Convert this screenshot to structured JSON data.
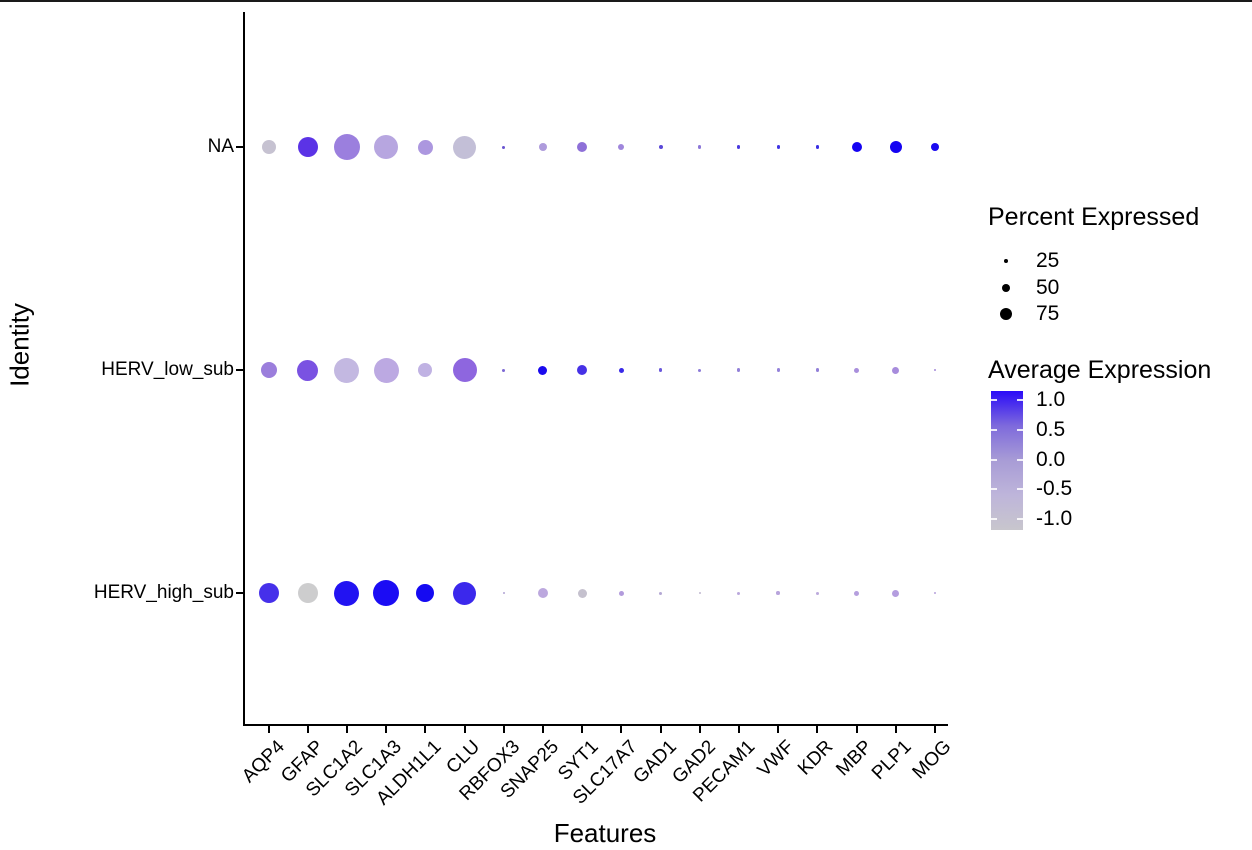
{
  "chart_data": {
    "type": "scatter",
    "subtype": "dotplot",
    "xlabel": "Features",
    "ylabel": "Identity",
    "x_categories": [
      "AQP4",
      "GFAP",
      "SLC1A2",
      "SLC1A3",
      "ALDH1L1",
      "CLU",
      "RBFOX3",
      "SNAP25",
      "SYT1",
      "SLC17A7",
      "GAD1",
      "GAD2",
      "PECAM1",
      "VWF",
      "KDR",
      "MBP",
      "PLP1",
      "MOG"
    ],
    "y_categories": [
      "NA",
      "HERV_low_sub",
      "HERV_high_sub"
    ],
    "series": [
      {
        "identity": "NA",
        "percent_expressed": [
          52,
          75,
          97,
          90,
          56,
          86,
          11,
          30,
          37,
          22,
          15,
          13,
          12,
          12,
          12,
          37,
          45,
          30
        ],
        "avg_expression": [
          -0.8,
          0.7,
          0.3,
          -0.1,
          0.1,
          -0.7,
          0.5,
          0.0,
          0.4,
          0.2,
          0.6,
          0.3,
          0.7,
          0.8,
          0.8,
          1.0,
          1.0,
          1.0
        ],
        "radius_px": [
          7,
          10,
          13,
          12,
          7.5,
          11.5,
          1.5,
          4,
          5,
          3,
          2,
          1.8,
          1.6,
          1.6,
          1.6,
          5,
          6,
          4
        ],
        "colors": [
          "#C6C2D1",
          "#5B33E6",
          "#9B7FDE",
          "#B7A6E0",
          "#AC97DF",
          "#C3BFD7",
          "#6A55D0",
          "#AE9BDC",
          "#8E70D8",
          "#9F86DC",
          "#5A48D8",
          "#8C77D8",
          "#4A3AE0",
          "#4035E4",
          "#3A2FE4",
          "#1503F2",
          "#1503F2",
          "#1B0AF0"
        ]
      },
      {
        "identity": "HERV_low_sub",
        "percent_expressed": [
          60,
          78,
          93,
          93,
          52,
          90,
          11,
          34,
          37,
          19,
          12,
          11,
          12,
          12,
          12,
          19,
          26,
          10
        ],
        "avg_expression": [
          0.3,
          0.55,
          -0.35,
          -0.15,
          -0.25,
          0.45,
          0.5,
          1.0,
          0.75,
          0.8,
          0.55,
          0.35,
          0.3,
          0.3,
          0.3,
          0.1,
          0.15,
          0.15
        ],
        "radius_px": [
          8,
          10.5,
          12.5,
          12.5,
          7,
          12,
          1.5,
          4.5,
          5,
          2.5,
          1.6,
          1.5,
          1.6,
          1.6,
          1.6,
          2.5,
          3.5,
          1.3
        ],
        "colors": [
          "#9B7EDC",
          "#7A52E2",
          "#C3B8E1",
          "#BCA9E2",
          "#C0B2E3",
          "#8E66DF",
          "#7C68D4",
          "#1A0AEE",
          "#4631E6",
          "#3929E8",
          "#6A58DC",
          "#8C7AD8",
          "#9280D8",
          "#9482DA",
          "#9280D8",
          "#A98FDC",
          "#A78CDC",
          "#A48AD8"
        ]
      },
      {
        "identity": "HERV_high_sub",
        "percent_expressed": [
          75,
          75,
          93,
          97,
          67,
          86,
          9,
          37,
          34,
          19,
          11,
          9,
          11,
          13,
          11,
          19,
          26,
          10
        ],
        "avg_expression": [
          0.75,
          -1.0,
          0.95,
          1.0,
          1.0,
          0.85,
          -0.5,
          -0.2,
          -0.9,
          -0.1,
          -0.4,
          -0.7,
          -0.2,
          -0.15,
          -0.25,
          -0.05,
          -0.05,
          -0.1
        ],
        "radius_px": [
          10,
          10,
          12.5,
          13,
          9,
          11.5,
          1.2,
          5,
          4.5,
          2.5,
          1.5,
          1.2,
          1.5,
          1.8,
          1.5,
          2.5,
          3.5,
          1.3
        ],
        "colors": [
          "#4630EA",
          "#CDCDCE",
          "#2213F2",
          "#1B0CF4",
          "#150AF2",
          "#3B28EC",
          "#B1A4D4",
          "#BCA8DE",
          "#C5C1CE",
          "#B29BDC",
          "#B4A8D4",
          "#C0B8D0",
          "#BAA8DC",
          "#B8A4DC",
          "#BCAADC",
          "#B59FDE",
          "#B49DDF",
          "#B6A2DC"
        ]
      }
    ],
    "legend_size": {
      "title": "Percent Expressed",
      "entries": [
        {
          "label": "25",
          "radius_px": 2.3
        },
        {
          "label": "50",
          "radius_px": 4.0
        },
        {
          "label": "75",
          "radius_px": 6.3
        }
      ]
    },
    "legend_color": {
      "title": "Average Expression",
      "tick_labels": [
        "1.0",
        "0.5",
        "0.0",
        "-0.5",
        "-1.0"
      ],
      "gradient_top_to_bottom": [
        "#2A0BF8",
        "#7E6ADC",
        "#A89CD6",
        "#BEB5DA",
        "#C8C6CD"
      ],
      "high_color": "#0000FF",
      "low_color": "#D3D3D3",
      "range": [
        -1.0,
        1.0
      ]
    },
    "axis_range_note": "categorical axes; grid off; white background"
  }
}
